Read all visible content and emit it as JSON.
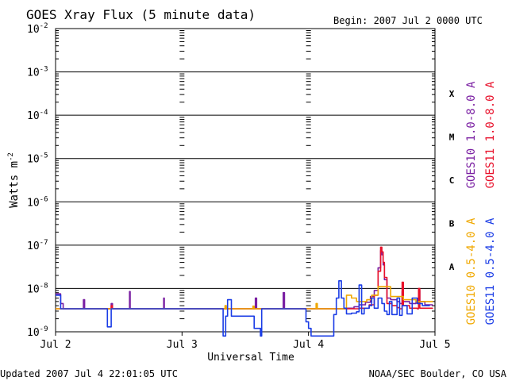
{
  "chart_data": {
    "type": "line",
    "title": "GOES Xray Flux (5 minute data)",
    "begin_label": "Begin:  2007 Jul 2 0000 UTC",
    "ylabel": "Watts m",
    "ylabel_exponent": "-2",
    "xlabel": "Universal Time",
    "y_scale": "log",
    "ylim": [
      1e-09,
      0.01
    ],
    "y_ticks": [
      {
        "mantissa": "10",
        "exponent": "-2",
        "value": 0.01
      },
      {
        "mantissa": "10",
        "exponent": "-3",
        "value": 0.001
      },
      {
        "mantissa": "10",
        "exponent": "-4",
        "value": 0.0001
      },
      {
        "mantissa": "10",
        "exponent": "-5",
        "value": 1e-05
      },
      {
        "mantissa": "10",
        "exponent": "-6",
        "value": 1e-06
      },
      {
        "mantissa": "10",
        "exponent": "-7",
        "value": 1e-07
      },
      {
        "mantissa": "10",
        "exponent": "-8",
        "value": 1e-08
      },
      {
        "mantissa": "10",
        "exponent": "-9",
        "value": 1e-09
      }
    ],
    "xlim_days": [
      0,
      3
    ],
    "x_ticks": [
      {
        "label": "Jul 2",
        "day": 0
      },
      {
        "label": "Jul 3",
        "day": 1
      },
      {
        "label": "Jul 4",
        "day": 2
      },
      {
        "label": "Jul 5",
        "day": 3
      }
    ],
    "flare_classes": [
      {
        "label": "X",
        "value": 0.0001
      },
      {
        "label": "M",
        "value": 1e-05
      },
      {
        "label": "C",
        "value": 1e-06
      },
      {
        "label": "B",
        "value": 1e-07
      },
      {
        "label": "A",
        "value": 1e-08
      }
    ],
    "series": [
      {
        "name": "GOES10 1.0-8.0 A",
        "color": "#7a1fa2",
        "points": [
          [
            0.0,
            7.5e-09
          ],
          [
            0.02,
            7.5e-09
          ],
          [
            0.04,
            4.5e-09
          ],
          [
            0.06,
            3.4e-09
          ],
          [
            0.2,
            3.4e-09
          ],
          [
            0.22,
            5.5e-09
          ],
          [
            0.23,
            3.4e-09
          ],
          [
            0.43,
            3.4e-09
          ],
          [
            0.44,
            4.5e-09
          ],
          [
            0.45,
            3.4e-09
          ],
          [
            0.58,
            3.4e-09
          ],
          [
            0.585,
            8.5e-09
          ],
          [
            0.59,
            3.4e-09
          ],
          [
            0.85,
            3.4e-09
          ],
          [
            0.855,
            6e-09
          ],
          [
            0.86,
            3.4e-09
          ],
          [
            1.57,
            3.4e-09
          ],
          [
            1.58,
            6e-09
          ],
          [
            1.59,
            3.4e-09
          ],
          [
            1.79,
            3.4e-09
          ],
          [
            1.8,
            8e-09
          ],
          [
            1.81,
            3.4e-09
          ],
          [
            2.2,
            3.4e-09
          ],
          [
            2.3,
            3.5e-09
          ],
          [
            2.36,
            3.8e-09
          ],
          [
            2.4,
            4.2e-09
          ],
          [
            2.45,
            4.8e-09
          ],
          [
            2.49,
            6.5e-09
          ],
          [
            2.52,
            9e-09
          ],
          [
            2.55,
            3e-08
          ],
          [
            2.57,
            7.5e-08
          ],
          [
            2.58,
            6e-08
          ],
          [
            2.59,
            3.5e-08
          ],
          [
            2.6,
            1.6e-08
          ],
          [
            2.62,
            6e-09
          ],
          [
            2.65,
            5.5e-09
          ],
          [
            2.7,
            5e-09
          ],
          [
            2.72,
            4.5e-09
          ],
          [
            2.74,
            8.5e-09
          ],
          [
            2.75,
            5e-09
          ],
          [
            2.8,
            4.5e-09
          ],
          [
            2.85,
            5e-09
          ],
          [
            2.87,
            9e-09
          ],
          [
            2.88,
            5e-09
          ],
          [
            2.92,
            4.2e-09
          ],
          [
            2.98,
            4e-09
          ]
        ]
      },
      {
        "name": "GOES11 1.0-8.0 A",
        "color": "#e8102a",
        "points": [
          [
            0.0,
            3.4e-09
          ],
          [
            0.43,
            3.4e-09
          ],
          [
            0.44,
            4e-09
          ],
          [
            0.45,
            3.4e-09
          ],
          [
            2.3,
            3.4e-09
          ],
          [
            2.4,
            3.5e-09
          ],
          [
            2.48,
            4.2e-09
          ],
          [
            2.52,
            7e-09
          ],
          [
            2.55,
            2.5e-08
          ],
          [
            2.57,
            9e-08
          ],
          [
            2.58,
            7e-08
          ],
          [
            2.59,
            4e-08
          ],
          [
            2.6,
            1.8e-08
          ],
          [
            2.62,
            4.5e-09
          ],
          [
            2.66,
            4e-09
          ],
          [
            2.7,
            3.6e-09
          ],
          [
            2.72,
            3.4e-09
          ],
          [
            2.74,
            1.4e-08
          ],
          [
            2.75,
            4e-09
          ],
          [
            2.8,
            3.5e-09
          ],
          [
            2.86,
            3.4e-09
          ],
          [
            2.87,
            1e-08
          ],
          [
            2.88,
            3.5e-09
          ],
          [
            2.98,
            3.4e-09
          ]
        ]
      },
      {
        "name": "GOES10 0.5-4.0 A",
        "color": "#f0a800",
        "points": [
          [
            0.0,
            3.4e-09
          ],
          [
            1.33,
            3.4e-09
          ],
          [
            1.34,
            4e-09
          ],
          [
            1.35,
            3.4e-09
          ],
          [
            1.55,
            3.4e-09
          ],
          [
            1.56,
            3.9e-09
          ],
          [
            1.57,
            3.4e-09
          ],
          [
            2.05,
            3.4e-09
          ],
          [
            2.06,
            4.5e-09
          ],
          [
            2.07,
            3.4e-09
          ],
          [
            2.28,
            3.4e-09
          ],
          [
            2.3,
            7e-09
          ],
          [
            2.34,
            6e-09
          ],
          [
            2.38,
            5e-09
          ],
          [
            2.42,
            5e-09
          ],
          [
            2.46,
            5.5e-09
          ],
          [
            2.5,
            7e-09
          ],
          [
            2.55,
            1.1e-08
          ],
          [
            2.65,
            6.5e-09
          ],
          [
            2.75,
            5.5e-09
          ],
          [
            2.85,
            5e-09
          ],
          [
            2.98,
            4.8e-09
          ]
        ]
      },
      {
        "name": "GOES11 0.5-4.0 A",
        "color": "#1a3ce6",
        "points": [
          [
            0.0,
            7e-09
          ],
          [
            0.02,
            7e-09
          ],
          [
            0.04,
            3.4e-09
          ],
          [
            0.4,
            3.4e-09
          ],
          [
            0.41,
            1.3e-09
          ],
          [
            0.43,
            1.3e-09
          ],
          [
            0.44,
            3.4e-09
          ],
          [
            1.32,
            3.4e-09
          ],
          [
            1.325,
            8e-10
          ],
          [
            1.345,
            2.3e-09
          ],
          [
            1.36,
            5.5e-09
          ],
          [
            1.38,
            5.5e-09
          ],
          [
            1.39,
            2.3e-09
          ],
          [
            1.55,
            2.3e-09
          ],
          [
            1.57,
            1.2e-09
          ],
          [
            1.6,
            1.2e-09
          ],
          [
            1.62,
            8e-10
          ],
          [
            1.63,
            3.4e-09
          ],
          [
            1.97,
            3.4e-09
          ],
          [
            1.98,
            1.7e-09
          ],
          [
            2.0,
            1.2e-09
          ],
          [
            2.02,
            8e-10
          ],
          [
            2.18,
            8e-10
          ],
          [
            2.2,
            2.5e-09
          ],
          [
            2.22,
            6e-09
          ],
          [
            2.24,
            1.5e-08
          ],
          [
            2.26,
            6e-09
          ],
          [
            2.28,
            3.5e-09
          ],
          [
            2.3,
            2.6e-09
          ],
          [
            2.34,
            2.7e-09
          ],
          [
            2.38,
            2.9e-09
          ],
          [
            2.4,
            1.2e-08
          ],
          [
            2.42,
            2.6e-09
          ],
          [
            2.44,
            3.5e-09
          ],
          [
            2.48,
            4e-09
          ],
          [
            2.5,
            6e-09
          ],
          [
            2.52,
            3.5e-09
          ],
          [
            2.55,
            6e-09
          ],
          [
            2.58,
            4.5e-09
          ],
          [
            2.6,
            3e-09
          ],
          [
            2.62,
            2.5e-09
          ],
          [
            2.64,
            5e-09
          ],
          [
            2.66,
            2.5e-09
          ],
          [
            2.7,
            6e-09
          ],
          [
            2.72,
            2.4e-09
          ],
          [
            2.74,
            4e-09
          ],
          [
            2.78,
            2.6e-09
          ],
          [
            2.82,
            6e-09
          ],
          [
            2.86,
            4.5e-09
          ],
          [
            2.9,
            4e-09
          ],
          [
            2.96,
            4e-09
          ]
        ]
      }
    ],
    "baseline_level": 3.4e-09,
    "grid": true,
    "legend_position": "right, vertical"
  },
  "footer": {
    "updated": "Updated 2007 Jul  4 22:01:05 UTC",
    "credit": "NOAA/SEC Boulder, CO USA"
  }
}
